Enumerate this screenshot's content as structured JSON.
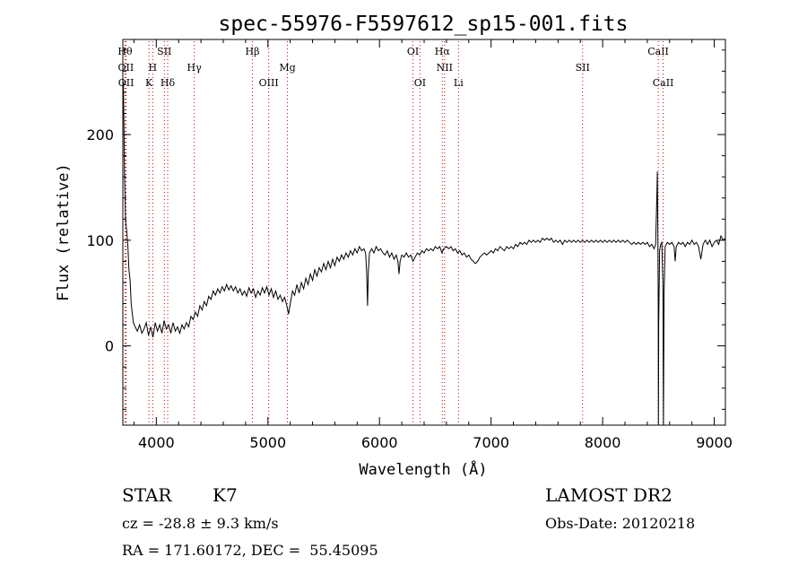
{
  "chart_data": {
    "type": "line",
    "title": "spec-55976-F5597612_sp15-001.fits",
    "xlabel": "Wavelength (Å)",
    "ylabel": "Flux (relative)",
    "xlim": [
      3700,
      9100
    ],
    "ylim": [
      -75,
      290
    ],
    "x_ticks": [
      4000,
      5000,
      6000,
      7000,
      8000,
      9000
    ],
    "y_ticks": [
      0,
      100,
      200
    ],
    "grid": false,
    "line_color": "#000000",
    "marker_color": "#cc0000",
    "series": [
      {
        "points": [
          [
            3705,
            250
          ],
          [
            3715,
            160
          ],
          [
            3725,
            118
          ],
          [
            3735,
            108
          ],
          [
            3745,
            95
          ],
          [
            3755,
            72
          ],
          [
            3765,
            62
          ],
          [
            3775,
            40
          ],
          [
            3785,
            30
          ],
          [
            3795,
            22
          ],
          [
            3810,
            18
          ],
          [
            3830,
            14
          ],
          [
            3850,
            20
          ],
          [
            3870,
            12
          ],
          [
            3890,
            16
          ],
          [
            3910,
            22
          ],
          [
            3930,
            10
          ],
          [
            3950,
            18
          ],
          [
            3970,
            8
          ],
          [
            3990,
            22
          ],
          [
            4010,
            14
          ],
          [
            4030,
            20
          ],
          [
            4050,
            12
          ],
          [
            4070,
            24
          ],
          [
            4090,
            16
          ],
          [
            4110,
            20
          ],
          [
            4130,
            12
          ],
          [
            4150,
            22
          ],
          [
            4170,
            14
          ],
          [
            4190,
            18
          ],
          [
            4210,
            12
          ],
          [
            4230,
            20
          ],
          [
            4250,
            16
          ],
          [
            4270,
            22
          ],
          [
            4290,
            18
          ],
          [
            4310,
            28
          ],
          [
            4330,
            25
          ],
          [
            4350,
            32
          ],
          [
            4370,
            28
          ],
          [
            4390,
            38
          ],
          [
            4410,
            34
          ],
          [
            4430,
            42
          ],
          [
            4450,
            38
          ],
          [
            4470,
            47
          ],
          [
            4490,
            44
          ],
          [
            4510,
            52
          ],
          [
            4530,
            48
          ],
          [
            4550,
            54
          ],
          [
            4570,
            50
          ],
          [
            4590,
            56
          ],
          [
            4610,
            52
          ],
          [
            4630,
            58
          ],
          [
            4650,
            53
          ],
          [
            4670,
            57
          ],
          [
            4690,
            52
          ],
          [
            4710,
            56
          ],
          [
            4730,
            50
          ],
          [
            4750,
            54
          ],
          [
            4770,
            48
          ],
          [
            4790,
            52
          ],
          [
            4810,
            47
          ],
          [
            4830,
            55
          ],
          [
            4850,
            50
          ],
          [
            4870,
            54
          ],
          [
            4890,
            46
          ],
          [
            4910,
            52
          ],
          [
            4930,
            48
          ],
          [
            4950,
            55
          ],
          [
            4970,
            50
          ],
          [
            4990,
            56
          ],
          [
            5010,
            48
          ],
          [
            5030,
            54
          ],
          [
            5050,
            46
          ],
          [
            5070,
            52
          ],
          [
            5090,
            44
          ],
          [
            5110,
            48
          ],
          [
            5130,
            42
          ],
          [
            5150,
            46
          ],
          [
            5170,
            38
          ],
          [
            5185,
            30
          ],
          [
            5200,
            40
          ],
          [
            5220,
            52
          ],
          [
            5240,
            48
          ],
          [
            5260,
            58
          ],
          [
            5280,
            50
          ],
          [
            5300,
            60
          ],
          [
            5320,
            54
          ],
          [
            5340,
            64
          ],
          [
            5360,
            58
          ],
          [
            5380,
            68
          ],
          [
            5400,
            62
          ],
          [
            5420,
            72
          ],
          [
            5440,
            66
          ],
          [
            5460,
            74
          ],
          [
            5480,
            70
          ],
          [
            5500,
            78
          ],
          [
            5520,
            72
          ],
          [
            5540,
            80
          ],
          [
            5560,
            74
          ],
          [
            5580,
            82
          ],
          [
            5600,
            76
          ],
          [
            5620,
            84
          ],
          [
            5640,
            80
          ],
          [
            5660,
            86
          ],
          [
            5680,
            82
          ],
          [
            5700,
            88
          ],
          [
            5720,
            84
          ],
          [
            5740,
            90
          ],
          [
            5760,
            86
          ],
          [
            5780,
            92
          ],
          [
            5800,
            88
          ],
          [
            5820,
            94
          ],
          [
            5840,
            90
          ],
          [
            5860,
            92
          ],
          [
            5875,
            88
          ],
          [
            5885,
            70
          ],
          [
            5893,
            38
          ],
          [
            5900,
            70
          ],
          [
            5910,
            88
          ],
          [
            5930,
            92
          ],
          [
            5950,
            88
          ],
          [
            5970,
            94
          ],
          [
            5990,
            90
          ],
          [
            6010,
            92
          ],
          [
            6030,
            88
          ],
          [
            6050,
            86
          ],
          [
            6070,
            90
          ],
          [
            6090,
            84
          ],
          [
            6110,
            88
          ],
          [
            6130,
            82
          ],
          [
            6150,
            86
          ],
          [
            6165,
            80
          ],
          [
            6175,
            68
          ],
          [
            6185,
            80
          ],
          [
            6200,
            86
          ],
          [
            6220,
            84
          ],
          [
            6240,
            88
          ],
          [
            6260,
            84
          ],
          [
            6280,
            86
          ],
          [
            6300,
            80
          ],
          [
            6320,
            84
          ],
          [
            6340,
            88
          ],
          [
            6360,
            86
          ],
          [
            6380,
            90
          ],
          [
            6400,
            88
          ],
          [
            6420,
            92
          ],
          [
            6440,
            90
          ],
          [
            6460,
            92
          ],
          [
            6480,
            90
          ],
          [
            6500,
            94
          ],
          [
            6520,
            92
          ],
          [
            6540,
            94
          ],
          [
            6560,
            88
          ],
          [
            6575,
            92
          ],
          [
            6600,
            94
          ],
          [
            6620,
            92
          ],
          [
            6640,
            94
          ],
          [
            6660,
            90
          ],
          [
            6680,
            92
          ],
          [
            6700,
            88
          ],
          [
            6720,
            90
          ],
          [
            6740,
            86
          ],
          [
            6760,
            88
          ],
          [
            6780,
            84
          ],
          [
            6800,
            86
          ],
          [
            6820,
            82
          ],
          [
            6840,
            80
          ],
          [
            6860,
            78
          ],
          [
            6880,
            80
          ],
          [
            6900,
            84
          ],
          [
            6920,
            86
          ],
          [
            6940,
            88
          ],
          [
            6960,
            86
          ],
          [
            6980,
            88
          ],
          [
            7000,
            90
          ],
          [
            7020,
            88
          ],
          [
            7040,
            92
          ],
          [
            7060,
            90
          ],
          [
            7080,
            94
          ],
          [
            7100,
            92
          ],
          [
            7120,
            90
          ],
          [
            7140,
            94
          ],
          [
            7160,
            92
          ],
          [
            7180,
            94
          ],
          [
            7200,
            92
          ],
          [
            7220,
            96
          ],
          [
            7240,
            94
          ],
          [
            7260,
            98
          ],
          [
            7280,
            96
          ],
          [
            7300,
            98
          ],
          [
            7320,
            96
          ],
          [
            7340,
            100
          ],
          [
            7360,
            98
          ],
          [
            7380,
            100
          ],
          [
            7400,
            98
          ],
          [
            7420,
            100
          ],
          [
            7440,
            98
          ],
          [
            7460,
            102
          ],
          [
            7480,
            100
          ],
          [
            7500,
            102
          ],
          [
            7520,
            100
          ],
          [
            7540,
            102
          ],
          [
            7560,
            98
          ],
          [
            7580,
            100
          ],
          [
            7600,
            98
          ],
          [
            7620,
            100
          ],
          [
            7640,
            96
          ],
          [
            7660,
            100
          ],
          [
            7680,
            98
          ],
          [
            7700,
            100
          ],
          [
            7720,
            98
          ],
          [
            7740,
            100
          ],
          [
            7760,
            98
          ],
          [
            7780,
            100
          ],
          [
            7800,
            98
          ],
          [
            7820,
            100
          ],
          [
            7840,
            98
          ],
          [
            7860,
            100
          ],
          [
            7880,
            98
          ],
          [
            7900,
            100
          ],
          [
            7920,
            98
          ],
          [
            7940,
            100
          ],
          [
            7960,
            98
          ],
          [
            7980,
            100
          ],
          [
            8000,
            98
          ],
          [
            8020,
            100
          ],
          [
            8040,
            98
          ],
          [
            8060,
            100
          ],
          [
            8080,
            98
          ],
          [
            8100,
            100
          ],
          [
            8120,
            98
          ],
          [
            8140,
            100
          ],
          [
            8160,
            98
          ],
          [
            8180,
            100
          ],
          [
            8200,
            98
          ],
          [
            8220,
            100
          ],
          [
            8240,
            98
          ],
          [
            8260,
            96
          ],
          [
            8280,
            98
          ],
          [
            8300,
            96
          ],
          [
            8320,
            98
          ],
          [
            8340,
            96
          ],
          [
            8360,
            98
          ],
          [
            8380,
            96
          ],
          [
            8400,
            98
          ],
          [
            8420,
            94
          ],
          [
            8440,
            96
          ],
          [
            8460,
            92
          ],
          [
            8475,
            96
          ],
          [
            8485,
            140
          ],
          [
            8490,
            165
          ],
          [
            8495,
            100
          ],
          [
            8498,
            40
          ],
          [
            8500,
            -75
          ],
          [
            8502,
            20
          ],
          [
            8510,
            90
          ],
          [
            8520,
            96
          ],
          [
            8530,
            98
          ],
          [
            8540,
            60
          ],
          [
            8545,
            -75
          ],
          [
            8550,
            50
          ],
          [
            8560,
            94
          ],
          [
            8580,
            98
          ],
          [
            8600,
            96
          ],
          [
            8620,
            98
          ],
          [
            8640,
            94
          ],
          [
            8650,
            80
          ],
          [
            8660,
            94
          ],
          [
            8680,
            98
          ],
          [
            8700,
            96
          ],
          [
            8720,
            98
          ],
          [
            8740,
            94
          ],
          [
            8760,
            98
          ],
          [
            8780,
            96
          ],
          [
            8800,
            100
          ],
          [
            8820,
            96
          ],
          [
            8840,
            98
          ],
          [
            8860,
            94
          ],
          [
            8880,
            82
          ],
          [
            8900,
            96
          ],
          [
            8920,
            100
          ],
          [
            8940,
            96
          ],
          [
            8960,
            100
          ],
          [
            8980,
            94
          ],
          [
            9000,
            98
          ],
          [
            9020,
            100
          ],
          [
            9040,
            96
          ],
          [
            9060,
            104
          ],
          [
            9080,
            100
          ],
          [
            9100,
            102
          ]
        ]
      }
    ],
    "line_markers": [
      {
        "wavelength": 3720,
        "row": 0,
        "label": "Hθ"
      },
      {
        "wavelength": 3727,
        "row": 1,
        "label": "OII"
      },
      {
        "wavelength": 3729,
        "row": 2,
        "label": "OII"
      },
      {
        "wavelength": 3934,
        "row": 2,
        "label": "K"
      },
      {
        "wavelength": 3968,
        "row": 1,
        "label": "H"
      },
      {
        "wavelength": 4072,
        "row": 0,
        "label": "SII"
      },
      {
        "wavelength": 4102,
        "row": 2,
        "label": "Hδ"
      },
      {
        "wavelength": 4340,
        "row": 1,
        "label": "Hγ"
      },
      {
        "wavelength": 4861,
        "row": 0,
        "label": "Hβ"
      },
      {
        "wavelength": 5007,
        "row": 2,
        "label": "OIII"
      },
      {
        "wavelength": 5175,
        "row": 1,
        "label": "Mg"
      },
      {
        "wavelength": 6300,
        "row": 0,
        "label": "OI"
      },
      {
        "wavelength": 6363,
        "row": 2,
        "label": "OI"
      },
      {
        "wavelength": 6563,
        "row": 0,
        "label": "Hα"
      },
      {
        "wavelength": 6583,
        "row": 1,
        "label": "NII"
      },
      {
        "wavelength": 6708,
        "row": 2,
        "label": "Li"
      },
      {
        "wavelength": 7820,
        "row": 1,
        "label": "SII"
      },
      {
        "wavelength": 8498,
        "row": 0,
        "label": "CaII"
      },
      {
        "wavelength": 8542,
        "row": 2,
        "label": "CaII"
      }
    ]
  },
  "info": {
    "object_class": "STAR",
    "subclass": "K7",
    "survey": "LAMOST DR2",
    "redshift": "cz = -28.8 ± 9.3 km/s",
    "obs_date": "Obs-Date: 20120218",
    "coords": "RA = 171.60172, DEC =  55.45095"
  }
}
